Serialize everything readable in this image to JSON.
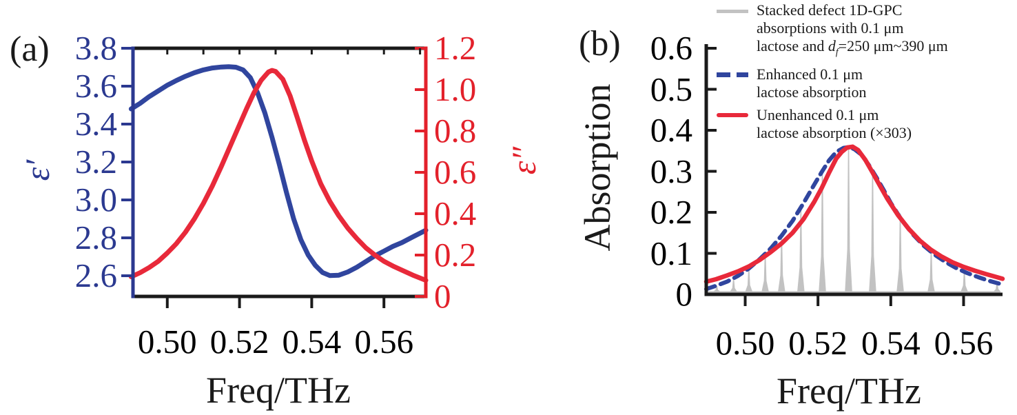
{
  "figure": {
    "panels": {
      "a": {
        "label": "(a)",
        "left_axis_title": "ε′",
        "right_axis_title": "ε″",
        "xlabel": "Freq/THz"
      },
      "b": {
        "label": "(b)",
        "ylabel": "Absorption",
        "xlabel": "Freq/THz"
      }
    },
    "legend": {
      "stacked": {
        "line1": "Stacked defect 1D-GPC",
        "line2": "absorptions with 0.1 μm",
        "line3_pre": "lactose and ",
        "line3_var": "d",
        "line3_sub": "f",
        "line3_post": "=250 μm~390 μm"
      },
      "enhanced": {
        "line1": "Enhanced 0.1 μm",
        "line2": "lactose absorption"
      },
      "unenhanced": {
        "line1": "Unenhanced 0.1 μm",
        "line2": "lactose absorption (×303)"
      }
    },
    "colors": {
      "navy": "#2B3990",
      "blue_curve": "#30459E",
      "red": "#E3212B",
      "red_curve": "#E8293A",
      "gray": "#C2C2C2",
      "black": "#1a1a1a"
    }
  },
  "chart_data": [
    {
      "panel": "a",
      "type": "line",
      "xlabel": "Freq/THz",
      "xlim": [
        0.4905,
        0.5716
      ],
      "x_ticks": [
        0.5,
        0.52,
        0.54,
        0.56
      ],
      "x_tick_labels": [
        "0.50",
        "0.52",
        "0.54",
        "0.56"
      ],
      "x_minor_ticks_top": [
        0.5,
        0.51,
        0.52,
        0.53,
        0.54,
        0.55,
        0.56,
        0.57
      ],
      "left_axis": {
        "label": "ε′",
        "lim": [
          2.491,
          3.8
        ],
        "ticks": [
          3.8,
          3.6,
          3.4,
          3.2,
          3.0,
          2.8,
          2.6
        ],
        "tick_labels": [
          "3.8",
          "3.6",
          "3.4",
          "3.2",
          "3.0",
          "2.8",
          "2.6"
        ]
      },
      "right_axis": {
        "label": "ε″",
        "lim": [
          0,
          1.2
        ],
        "ticks": [
          1.2,
          1.0,
          0.8,
          0.6,
          0.4,
          0.2,
          0
        ],
        "tick_labels": [
          "1.2",
          "1.0",
          "0.8",
          "0.6",
          "0.4",
          "0.2",
          "0"
        ]
      },
      "series": [
        {
          "name": "eps_prime",
          "axis": "left",
          "style": "solid",
          "color_key": "blue_curve",
          "x": [
            0.49,
            0.4925,
            0.495,
            0.4975,
            0.5,
            0.5025,
            0.505,
            0.5075,
            0.51,
            0.5125,
            0.515,
            0.517,
            0.519,
            0.521,
            0.523,
            0.525,
            0.527,
            0.529,
            0.531,
            0.533,
            0.535,
            0.537,
            0.539,
            0.541,
            0.543,
            0.545,
            0.5475,
            0.55,
            0.5525,
            0.555,
            0.5575,
            0.56,
            0.5625,
            0.565,
            0.568,
            0.5716
          ],
          "y": [
            3.48,
            3.51,
            3.545,
            3.575,
            3.605,
            3.63,
            3.652,
            3.671,
            3.686,
            3.696,
            3.701,
            3.703,
            3.7,
            3.686,
            3.645,
            3.565,
            3.46,
            3.33,
            3.19,
            3.04,
            2.9,
            2.79,
            2.71,
            2.655,
            2.617,
            2.601,
            2.603,
            2.62,
            2.645,
            2.675,
            2.705,
            2.73,
            2.755,
            2.775,
            2.805,
            2.84
          ]
        },
        {
          "name": "eps_double_prime",
          "axis": "right",
          "style": "solid",
          "color_key": "red_curve",
          "x": [
            0.49,
            0.4925,
            0.495,
            0.4975,
            0.5,
            0.5025,
            0.505,
            0.5075,
            0.51,
            0.5125,
            0.515,
            0.5175,
            0.52,
            0.522,
            0.524,
            0.526,
            0.528,
            0.529,
            0.53,
            0.532,
            0.534,
            0.536,
            0.538,
            0.54,
            0.5425,
            0.545,
            0.5475,
            0.55,
            0.5525,
            0.555,
            0.5575,
            0.56,
            0.5625,
            0.565,
            0.568,
            0.5716
          ],
          "y": [
            0.095,
            0.115,
            0.14,
            0.17,
            0.21,
            0.255,
            0.31,
            0.375,
            0.45,
            0.535,
            0.63,
            0.73,
            0.83,
            0.91,
            0.985,
            1.045,
            1.085,
            1.093,
            1.088,
            1.05,
            0.97,
            0.865,
            0.755,
            0.655,
            0.545,
            0.46,
            0.39,
            0.33,
            0.28,
            0.235,
            0.2,
            0.17,
            0.147,
            0.127,
            0.103,
            0.078
          ]
        }
      ]
    },
    {
      "panel": "b",
      "type": "line",
      "xlabel": "Freq/THz",
      "ylabel": "Absorption",
      "xlim": [
        0.4893,
        0.5707
      ],
      "ylim": [
        0,
        0.6
      ],
      "x_ticks": [
        0.5,
        0.52,
        0.54,
        0.56
      ],
      "x_tick_labels": [
        "0.50",
        "0.52",
        "0.54",
        "0.56"
      ],
      "y_ticks": [
        0.6,
        0.5,
        0.4,
        0.3,
        0.2,
        0.1,
        0
      ],
      "y_tick_labels": [
        "0.6",
        "0.5",
        "0.4",
        "0.3",
        "0.2",
        "0.1",
        "0"
      ],
      "series": [
        {
          "name": "stacked_defect_comb",
          "legend": "Stacked defect 1D-GPC absorptions with 0.1 μm lactose and df=250 μm~390 μm",
          "style": "spikes",
          "color_key": "gray",
          "baseline": 0.006,
          "spikes": [
            {
              "f": 0.4922,
              "a": 0.02
            },
            {
              "f": 0.4968,
              "a": 0.036
            },
            {
              "f": 0.501,
              "a": 0.06
            },
            {
              "f": 0.5055,
              "a": 0.096
            },
            {
              "f": 0.51,
              "a": 0.14
            },
            {
              "f": 0.5153,
              "a": 0.207
            },
            {
              "f": 0.5212,
              "a": 0.295
            },
            {
              "f": 0.5284,
              "a": 0.355
            },
            {
              "f": 0.535,
              "a": 0.3
            },
            {
              "f": 0.5426,
              "a": 0.196
            },
            {
              "f": 0.5511,
              "a": 0.106
            },
            {
              "f": 0.5602,
              "a": 0.056
            },
            {
              "f": 0.5692,
              "a": 0.028
            }
          ]
        },
        {
          "name": "enhanced_absorption",
          "legend": "Enhanced 0.1 μm lactose absorption",
          "style": "dashed",
          "color_key": "blue_curve",
          "x": [
            0.4893,
            0.492,
            0.495,
            0.498,
            0.501,
            0.504,
            0.507,
            0.51,
            0.513,
            0.516,
            0.519,
            0.521,
            0.523,
            0.525,
            0.527,
            0.5285,
            0.53,
            0.532,
            0.534,
            0.536,
            0.538,
            0.54,
            0.543,
            0.546,
            0.549,
            0.552,
            0.555,
            0.558,
            0.561,
            0.564,
            0.567,
            0.5707
          ],
          "y": [
            0.013,
            0.021,
            0.031,
            0.045,
            0.063,
            0.086,
            0.112,
            0.143,
            0.179,
            0.222,
            0.268,
            0.298,
            0.326,
            0.347,
            0.357,
            0.359,
            0.354,
            0.34,
            0.315,
            0.286,
            0.255,
            0.223,
            0.181,
            0.147,
            0.119,
            0.097,
            0.079,
            0.064,
            0.052,
            0.042,
            0.033,
            0.024
          ]
        },
        {
          "name": "unenhanced_absorption_x303",
          "legend": "Unenhanced 0.1 μm lactose absorption (×303)",
          "style": "solid",
          "color_key": "red_curve",
          "x": [
            0.4893,
            0.492,
            0.495,
            0.498,
            0.501,
            0.504,
            0.507,
            0.51,
            0.513,
            0.516,
            0.519,
            0.521,
            0.523,
            0.525,
            0.5265,
            0.528,
            0.5295,
            0.531,
            0.533,
            0.535,
            0.537,
            0.539,
            0.542,
            0.545,
            0.548,
            0.551,
            0.554,
            0.557,
            0.56,
            0.563,
            0.566,
            0.5707
          ],
          "y": [
            0.031,
            0.037,
            0.046,
            0.056,
            0.068,
            0.084,
            0.103,
            0.124,
            0.15,
            0.183,
            0.226,
            0.259,
            0.296,
            0.331,
            0.347,
            0.358,
            0.36,
            0.352,
            0.328,
            0.297,
            0.265,
            0.234,
            0.193,
            0.159,
            0.131,
            0.109,
            0.092,
            0.078,
            0.067,
            0.058,
            0.05,
            0.038
          ]
        }
      ]
    }
  ]
}
